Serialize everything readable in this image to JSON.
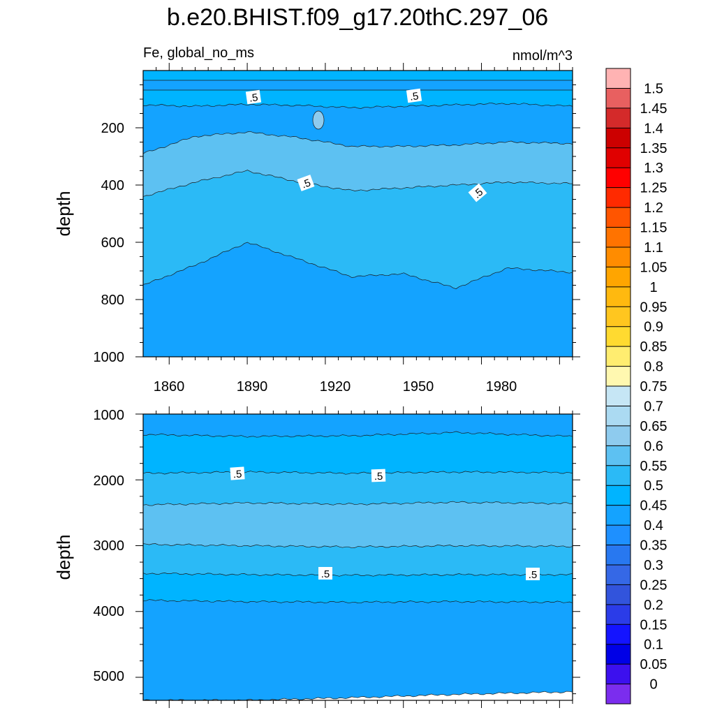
{
  "title": "b.e20.BHIST.f09_g17.20thC.297_06",
  "chart_data": [
    {
      "type": "heatmap",
      "subtype": "filled-contour",
      "panel": "upper",
      "left_string": "Fe, global_no_ms",
      "right_string": "nmol/m^3",
      "xlabel": "",
      "ylabel": "depth",
      "xlim": [
        1850,
        2015
      ],
      "ylim": [
        1000,
        0
      ],
      "y_reversed": true,
      "x_ticks": [
        "1860",
        "1890",
        "1920",
        "1950",
        "1980"
      ],
      "y_ticks": [
        "200",
        "400",
        "600",
        "800",
        "1000"
      ],
      "contour_line_labels": [
        ".5",
        ".5",
        ".5",
        ".5"
      ],
      "layers_approx": [
        {
          "depth_range": [
            0,
            60
          ],
          "value": "0.45-0.5"
        },
        {
          "depth_range": [
            60,
            110
          ],
          "value": "0.4-0.45"
        },
        {
          "depth_range": [
            110,
            250
          ],
          "value": "0.55-0.6"
        },
        {
          "depth_range": [
            250,
            400
          ],
          "value": "0.5-0.55"
        },
        {
          "depth_range": [
            400,
            680
          ],
          "value": "0.45-0.5"
        },
        {
          "depth_range": [
            680,
            1000
          ],
          "value": "0.4-0.45"
        }
      ],
      "boundaries_approx_depth": {
        "years": [
          1850,
          1870,
          1890,
          1910,
          1930,
          1950,
          1970,
          1990,
          2015
        ],
        "b_0.55_0.6": [
          120,
          125,
          118,
          122,
          130,
          125,
          120,
          115,
          125
        ],
        "b_0.5_0.55": [
          290,
          230,
          215,
          235,
          265,
          265,
          260,
          250,
          255
        ],
        "b_0.45_0.5": [
          440,
          390,
          350,
          390,
          420,
          410,
          400,
          390,
          395
        ],
        "b_0.4_0.45": [
          750,
          680,
          600,
          660,
          720,
          710,
          760,
          690,
          705
        ]
      }
    },
    {
      "type": "heatmap",
      "subtype": "filled-contour",
      "panel": "lower",
      "xlabel": "",
      "ylabel": "depth",
      "xlim": [
        1850,
        2015
      ],
      "ylim": [
        5350,
        1000
      ],
      "y_reversed": true,
      "y_ticks": [
        "1000",
        "2000",
        "3000",
        "4000",
        "5000"
      ],
      "contour_line_labels": [
        ".5",
        ".5",
        ".5",
        ".5"
      ],
      "layers_approx": [
        {
          "depth_range": [
            1000,
            1320
          ],
          "value": "0.4-0.45"
        },
        {
          "depth_range": [
            1320,
            1900
          ],
          "value": "0.45-0.5"
        },
        {
          "depth_range": [
            1900,
            2380
          ],
          "value": "0.5-0.55"
        },
        {
          "depth_range": [
            2380,
            2980
          ],
          "value": "0.55-0.6"
        },
        {
          "depth_range": [
            2980,
            3420
          ],
          "value": "0.5-0.55"
        },
        {
          "depth_range": [
            3420,
            3830
          ],
          "value": "0.45-0.5"
        },
        {
          "depth_range": [
            3830,
            5350
          ],
          "value": "0.4-0.45"
        }
      ],
      "boundaries_approx_depth": {
        "years": [
          1850,
          1890,
          1930,
          1970,
          2015
        ],
        "b1": [
          1310,
          1340,
          1330,
          1280,
          1340
        ],
        "b2": [
          1900,
          1880,
          1900,
          1880,
          1890
        ],
        "b3": [
          2380,
          2350,
          2370,
          2340,
          2360
        ],
        "b4": [
          2980,
          3000,
          3020,
          3000,
          3010
        ],
        "b5": [
          3420,
          3440,
          3450,
          3440,
          3440
        ],
        "b6": [
          3830,
          3850,
          3860,
          3850,
          3860
        ],
        "b7": [
          5350,
          5350,
          5310,
          5260,
          5220
        ]
      }
    }
  ],
  "colorbar": {
    "labels": [
      "1.5",
      "1.45",
      "1.4",
      "1.35",
      "1.3",
      "1.25",
      "1.2",
      "1.15",
      "1.1",
      "1.05",
      "1",
      "0.95",
      "0.9",
      "0.85",
      "0.8",
      "0.75",
      "0.7",
      "0.65",
      "0.6",
      "0.55",
      "0.5",
      "0.45",
      "0.4",
      "0.35",
      "0.3",
      "0.25",
      "0.2",
      "0.15",
      "0.1",
      "0.05",
      "0"
    ],
    "colors": [
      "#FFB3B3",
      "#E86060",
      "#D42A2A",
      "#CC0000",
      "#E00000",
      "#FF0000",
      "#FF2A00",
      "#FF5500",
      "#FF7300",
      "#FF8C00",
      "#FFA500",
      "#FFB90F",
      "#FFC61F",
      "#FFDA30",
      "#FFED70",
      "#FFF8B0",
      "#C6E6F5",
      "#ABDAF2",
      "#8ECBEE",
      "#5DC1F2",
      "#2BBAF6",
      "#00B4FF",
      "#14A3FF",
      "#1E90FF",
      "#2878F0",
      "#3568E6",
      "#3254DC",
      "#2B3CE8",
      "#1414FF",
      "#0000E6",
      "#3C10EE",
      "#7B2DEE"
    ]
  }
}
